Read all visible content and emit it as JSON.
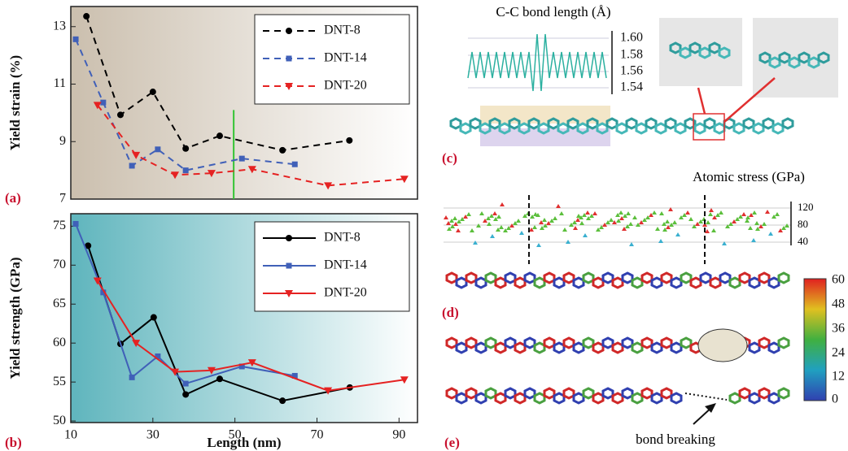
{
  "chart_data": [
    {
      "type": "line",
      "panel_label": "(a)",
      "y_label": "Yield strain (%)",
      "line_style": "dashed",
      "xlim": [
        10,
        94.5
      ],
      "ylim": [
        7,
        13.7
      ],
      "yticks": [
        7,
        9,
        11,
        13
      ],
      "legend": "upper right",
      "series": [
        {
          "name": "DNT-8",
          "color": "#000000",
          "marker": "circle",
          "x": [
            13.8,
            22.1,
            30,
            38,
            46.3,
            61.6,
            77.9
          ],
          "values": [
            13.36,
            9.93,
            10.73,
            8.76,
            9.2,
            8.7,
            9.04
          ]
        },
        {
          "name": "DNT-14",
          "color": "#4060b8",
          "marker": "square",
          "x": [
            11.2,
            17.9,
            24.9,
            31.2,
            38,
            51.7,
            64.6
          ],
          "values": [
            12.56,
            10.36,
            8.16,
            8.73,
            8.0,
            8.41,
            8.21
          ]
        },
        {
          "name": "DNT-20",
          "color": "#e52222",
          "marker": "triangle",
          "x": [
            16.5,
            25.9,
            35.4,
            44.3,
            54.2,
            72.7,
            91.3
          ],
          "values": [
            10.27,
            8.53,
            7.84,
            7.9,
            8.04,
            7.47,
            7.7
          ]
        }
      ],
      "vline": {
        "x": 49.7,
        "y_top": 10.1,
        "color": "#33c433"
      }
    },
    {
      "type": "line",
      "panel_label": "(b)",
      "y_label": "Yield strength (GPa)",
      "x_label": "Length (nm)",
      "line_style": "solid",
      "xlim": [
        10,
        94.5
      ],
      "ylim": [
        49.8,
        76.6
      ],
      "xticks": [
        10,
        30,
        50,
        70,
        90
      ],
      "yticks": [
        50,
        55,
        60,
        65,
        70,
        75
      ],
      "legend": "upper right",
      "series": [
        {
          "name": "DNT-8",
          "color": "#000000",
          "marker": "circle",
          "x": [
            14.2,
            22.1,
            30.2,
            38,
            46.3,
            61.6,
            78
          ],
          "values": [
            72.5,
            59.9,
            63.3,
            53.4,
            55.4,
            52.6,
            54.3
          ]
        },
        {
          "name": "DNT-14",
          "color": "#4060b8",
          "marker": "square",
          "x": [
            11.2,
            17.9,
            24.9,
            31.2,
            38,
            51.7,
            64.6
          ],
          "values": [
            75.3,
            66.5,
            55.6,
            58.3,
            54.8,
            57,
            55.8
          ]
        },
        {
          "name": "DNT-20",
          "color": "#e52222",
          "marker": "triangle",
          "x": [
            16.5,
            25.9,
            35.4,
            44.3,
            54.2,
            72.7,
            91.3
          ],
          "values": [
            68,
            60,
            56.3,
            56.5,
            57.5,
            53.9,
            55.3
          ]
        }
      ]
    }
  ],
  "figure": {
    "c": {
      "label": "(c)",
      "title": "C-C bond length (Å)",
      "ticks": [
        "1.60",
        "1.58",
        "1.56",
        "1.54"
      ]
    },
    "d": {
      "label": "(d)",
      "title": "Atomic stress (GPa)",
      "ticks": [
        "120",
        "80",
        "40"
      ]
    },
    "colorbar": {
      "ticks": [
        "60",
        "48",
        "36",
        "24",
        "12",
        "0"
      ]
    },
    "e": {
      "label": "(e)",
      "annotation": "bond breaking"
    }
  }
}
